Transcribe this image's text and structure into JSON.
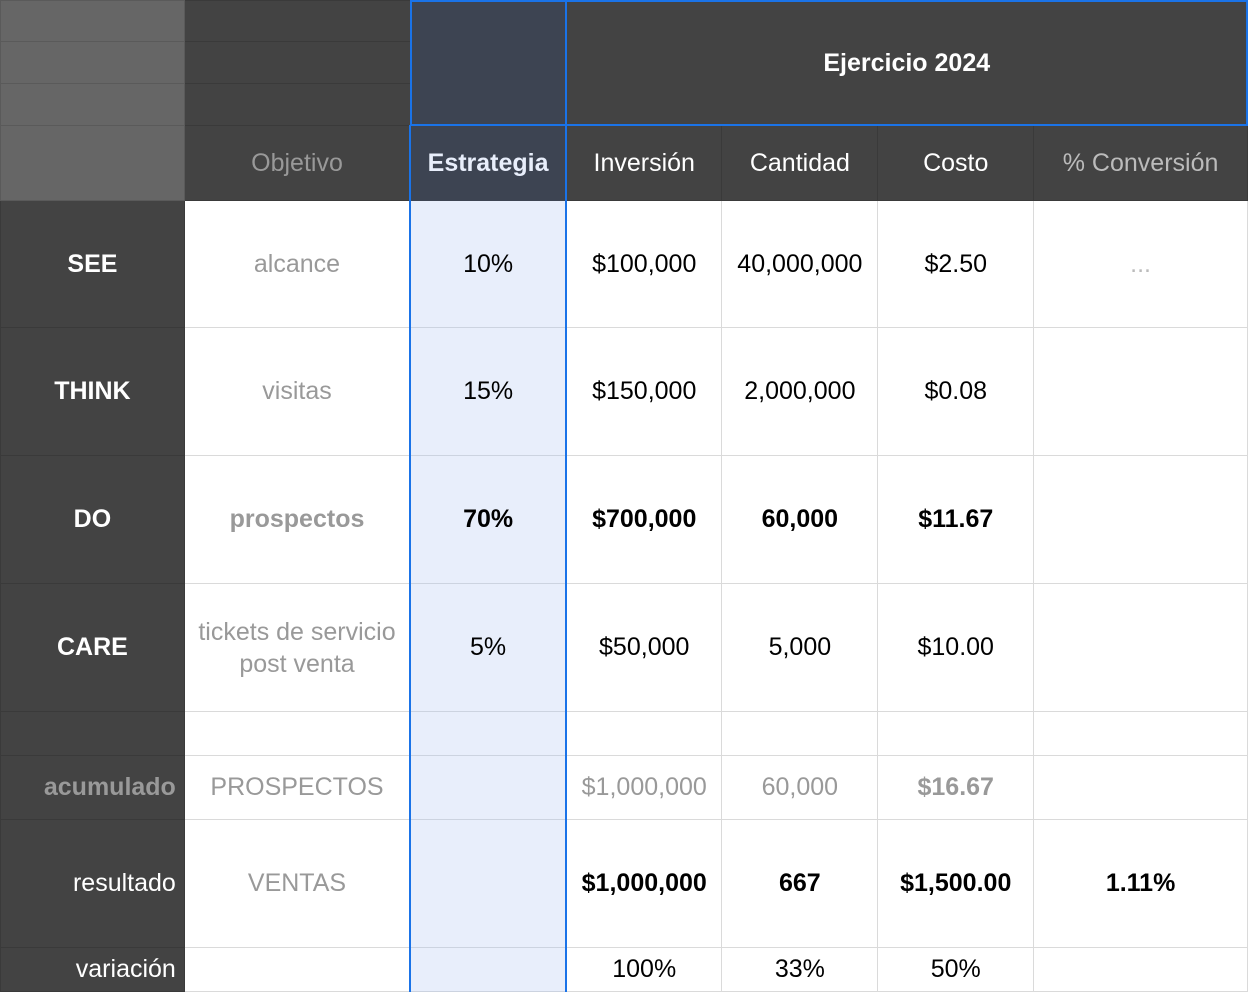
{
  "header": {
    "title": "Ejercicio 2024",
    "columns": [
      "Objetivo",
      "Estrategia",
      "Inversión",
      "Cantidad",
      "Costo",
      "% Conversión"
    ]
  },
  "rows": [
    {
      "label": "SEE",
      "objetivo": "alcance",
      "estrategia": "10%",
      "inversion": "$100,000",
      "cantidad": "40,000,000",
      "costo": "$2.50",
      "conversion": "..."
    },
    {
      "label": "THINK",
      "objetivo": "visitas",
      "estrategia": "15%",
      "inversion": "$150,000",
      "cantidad": "2,000,000",
      "costo": "$0.08",
      "conversion": ""
    },
    {
      "label": "DO",
      "objetivo": "prospectos",
      "estrategia": "70%",
      "inversion": "$700,000",
      "cantidad": "60,000",
      "costo": "$11.67",
      "conversion": ""
    },
    {
      "label": "CARE",
      "objetivo": "tickets de servicio post venta",
      "estrategia": "5%",
      "inversion": "$50,000",
      "cantidad": "5,000",
      "costo": "$10.00",
      "conversion": ""
    }
  ],
  "acumulado": {
    "label": "acumulado",
    "objetivo": "PROSPECTOS",
    "inversion": "$1,000,000",
    "cantidad": "60,000",
    "costo": "$16.67"
  },
  "resultado": {
    "label": "resultado",
    "objetivo": "VENTAS",
    "inversion": "$1,000,000",
    "cantidad": "667",
    "costo": "$1,500.00",
    "conversion": "1.11%"
  },
  "variacion": {
    "label": "variación",
    "inversion": "100%",
    "cantidad": "33%",
    "costo": "50%"
  },
  "colors": {
    "selection": "#1a73e8",
    "header_dark": "#434343",
    "selected_column": "#e8eefb"
  }
}
